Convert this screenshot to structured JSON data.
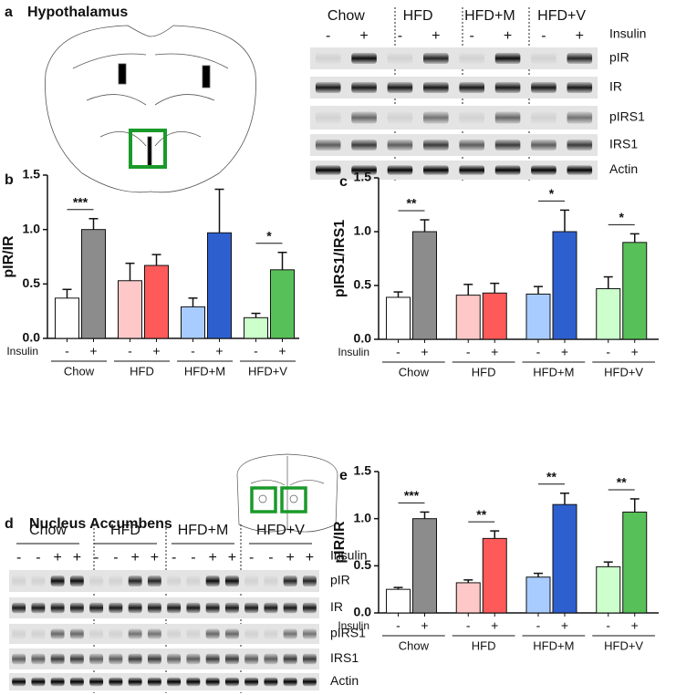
{
  "blots": [
    {
      "letter": "a",
      "title": "Hypothalamus",
      "groups": [
        "Chow",
        "HFD",
        "HFD+M",
        "HFD+V"
      ],
      "insulin_label": "Insulin",
      "signs": [
        "-",
        "+",
        "-",
        "+",
        "-",
        "+",
        "-",
        "+"
      ],
      "bands": [
        "pIR",
        "IR",
        "pIRS1",
        "IRS1",
        "Actin"
      ]
    },
    {
      "letter": "d",
      "title": "Nucleus Accumbens",
      "groups": [
        "Chow",
        "HFD",
        "HFD+M",
        "HFD+V"
      ],
      "insulin_label": "Insulin",
      "signs": [
        "-",
        "-",
        "+",
        "+",
        "-",
        "-",
        "+",
        "+",
        "-",
        "-",
        "+",
        "+",
        "-",
        "-",
        "+",
        "+"
      ],
      "bands": [
        "pIR",
        "IR",
        "pIRS1",
        "IRS1",
        "Actin"
      ]
    }
  ],
  "chart_data": [
    {
      "type": "bar",
      "letter": "b",
      "ylabel": "pIR/IR",
      "x_row_label": "Insulin",
      "categories": [
        "-",
        "+",
        "-",
        "+",
        "-",
        "+",
        "-",
        "+"
      ],
      "groups": [
        "Chow",
        "HFD",
        "HFD+M",
        "HFD+V"
      ],
      "values": [
        0.37,
        1.0,
        0.53,
        0.67,
        0.29,
        0.97,
        0.19,
        0.63
      ],
      "errors": [
        0.08,
        0.1,
        0.16,
        0.1,
        0.08,
        0.4,
        0.04,
        0.16
      ],
      "colors": [
        "#ffffff",
        "#8c8c8c",
        "#ffc8c8",
        "#ff5a5a",
        "#a8ccff",
        "#2e5fcf",
        "#ccffcc",
        "#58c058"
      ],
      "significance": [
        "***",
        null,
        null,
        "*"
      ],
      "ylim": [
        0,
        1.5
      ],
      "yticks": [
        {
          "value": 0,
          "label": "0.0"
        },
        {
          "value": 0.5,
          "label": "0.5"
        },
        {
          "value": 1,
          "label": "1.0"
        },
        {
          "value": 1.5,
          "label": "1.5"
        }
      ]
    },
    {
      "type": "bar",
      "letter": "c",
      "ylabel": "pIRS1/IRS1",
      "x_row_label": "Insulin",
      "categories": [
        "-",
        "+",
        "-",
        "+",
        "-",
        "+",
        "-",
        "+"
      ],
      "groups": [
        "Chow",
        "HFD",
        "HFD+M",
        "HFD+V"
      ],
      "values": [
        0.39,
        1.0,
        0.41,
        0.43,
        0.42,
        1.0,
        0.47,
        0.9
      ],
      "errors": [
        0.05,
        0.11,
        0.1,
        0.09,
        0.07,
        0.2,
        0.11,
        0.08
      ],
      "colors": [
        "#ffffff",
        "#8c8c8c",
        "#ffc8c8",
        "#ff5a5a",
        "#a8ccff",
        "#2e5fcf",
        "#ccffcc",
        "#58c058"
      ],
      "significance": [
        "**",
        null,
        "*",
        "*"
      ],
      "ylim": [
        0,
        1.5
      ],
      "yticks": [
        {
          "value": 0,
          "label": "0.0"
        },
        {
          "value": 0.5,
          "label": "0.5"
        },
        {
          "value": 1,
          "label": "1.0"
        },
        {
          "value": 1.5,
          "label": "1.5"
        }
      ]
    },
    {
      "type": "bar",
      "letter": "e",
      "ylabel": "pIR/IR",
      "x_row_label": "Insulin",
      "categories": [
        "-",
        "+",
        "-",
        "+",
        "-",
        "+",
        "-",
        "+"
      ],
      "groups": [
        "Chow",
        "HFD",
        "HFD+M",
        "HFD+V"
      ],
      "values": [
        0.25,
        1.0,
        0.32,
        0.79,
        0.38,
        1.15,
        0.49,
        1.07
      ],
      "errors": [
        0.02,
        0.07,
        0.03,
        0.08,
        0.04,
        0.12,
        0.05,
        0.14
      ],
      "colors": [
        "#ffffff",
        "#8c8c8c",
        "#ffc8c8",
        "#ff5a5a",
        "#a8ccff",
        "#2e5fcf",
        "#ccffcc",
        "#58c058"
      ],
      "significance": [
        "***",
        "**",
        "**",
        "**"
      ],
      "ylim": [
        0,
        1.5
      ],
      "yticks": [
        {
          "value": 0,
          "label": "0.0"
        },
        {
          "value": 0.5,
          "label": "0.5"
        },
        {
          "value": 1,
          "label": "1.0"
        },
        {
          "value": 1.5,
          "label": "1.5"
        }
      ]
    }
  ]
}
